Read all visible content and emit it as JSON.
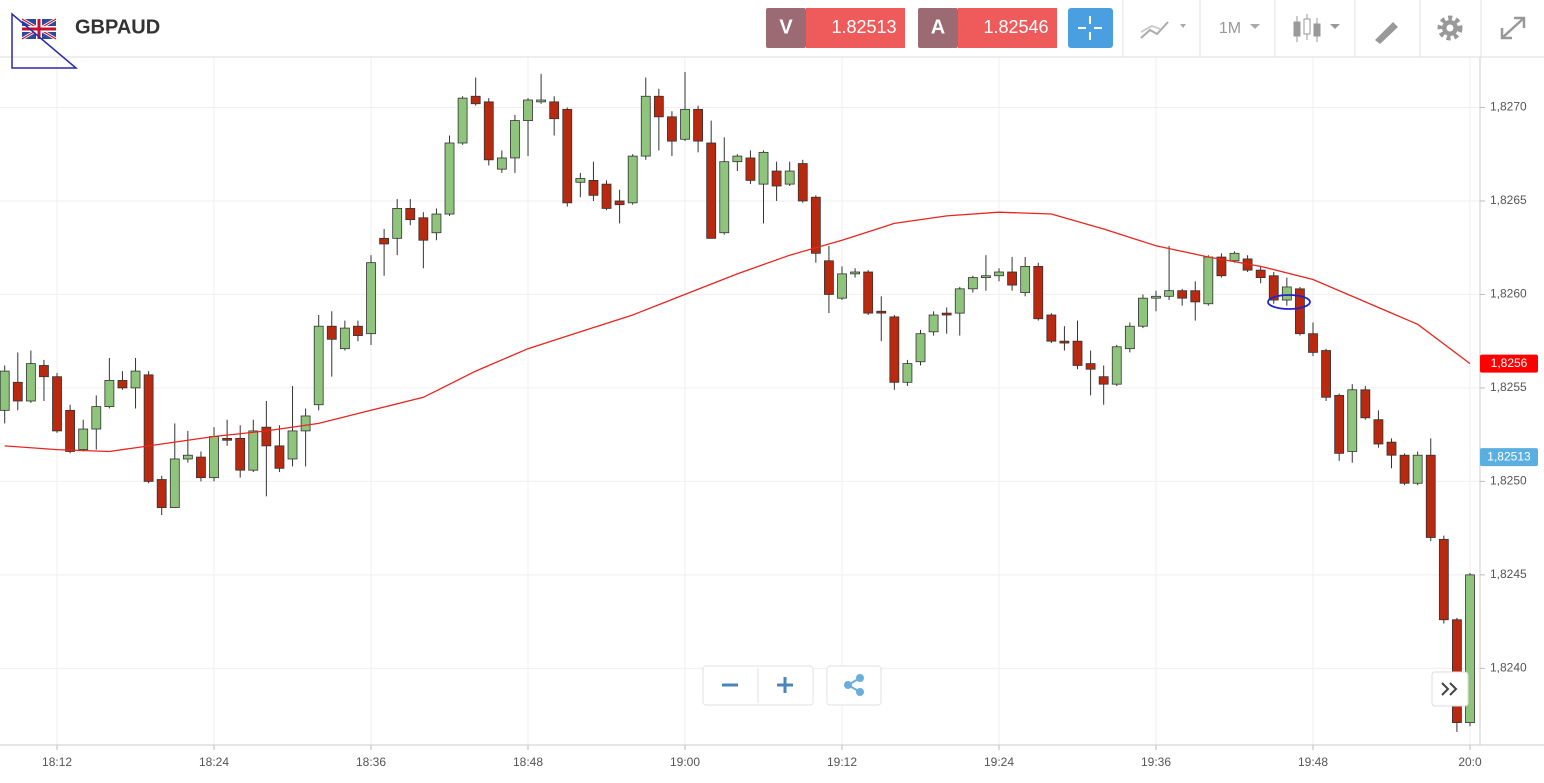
{
  "header": {
    "symbol": "GBPAUD",
    "bid_label": "V",
    "bid": 1.82513,
    "ask_label": "A",
    "ask": 1.82546,
    "timeframe": "1M"
  },
  "chart_data": {
    "type": "candlestick",
    "x": [
      "18:08",
      "18:09",
      "18:10",
      "18:11",
      "18:12",
      "18:13",
      "18:14",
      "18:15",
      "18:16",
      "18:17",
      "18:18",
      "18:19",
      "18:20",
      "18:21",
      "18:22",
      "18:23",
      "18:24",
      "18:25",
      "18:26",
      "18:27",
      "18:28",
      "18:29",
      "18:30",
      "18:31",
      "18:32",
      "18:33",
      "18:34",
      "18:35",
      "18:36",
      "18:37",
      "18:38",
      "18:39",
      "18:40",
      "18:41",
      "18:42",
      "18:43",
      "18:44",
      "18:45",
      "18:46",
      "18:47",
      "18:48",
      "18:49",
      "18:50",
      "18:51",
      "18:52",
      "18:53",
      "18:54",
      "18:55",
      "18:56",
      "18:57",
      "18:58",
      "18:59",
      "19:00",
      "19:01",
      "19:02",
      "19:03",
      "19:04",
      "19:05",
      "19:06",
      "19:07",
      "19:08",
      "19:09",
      "19:10",
      "19:11",
      "19:12",
      "19:13",
      "19:14",
      "19:15",
      "19:16",
      "19:17",
      "19:18",
      "19:19",
      "19:20",
      "19:21",
      "19:22",
      "19:23",
      "19:24",
      "19:25",
      "19:26",
      "19:27",
      "19:28",
      "19:29",
      "19:30",
      "19:31",
      "19:32",
      "19:33",
      "19:34",
      "19:35",
      "19:36",
      "19:37",
      "19:38",
      "19:39",
      "19:40",
      "19:41",
      "19:42",
      "19:43",
      "19:44",
      "19:45",
      "19:46",
      "19:47",
      "19:48",
      "19:49",
      "19:50",
      "19:51",
      "19:52",
      "19:53",
      "19:54",
      "19:55",
      "19:56",
      "19:57",
      "19:58",
      "19:59",
      "20:00"
    ],
    "open": [
      1.82538,
      1.82553,
      1.82543,
      1.82562,
      1.82556,
      1.82538,
      1.82517,
      1.82528,
      1.8254,
      1.82554,
      1.8255,
      1.82557,
      1.82501,
      1.82486,
      1.82512,
      1.82513,
      1.82502,
      1.82523,
      1.82523,
      1.82506,
      1.82529,
      1.82519,
      1.82512,
      1.82527,
      1.82541,
      1.82583,
      1.82571,
      1.82583,
      1.82579,
      1.8263,
      1.8263,
      1.82646,
      1.82641,
      1.82633,
      1.82643,
      1.82681,
      1.82706,
      1.82703,
      1.82667,
      1.82673,
      1.82693,
      1.82703,
      1.82703,
      1.82699,
      1.8266,
      1.82661,
      1.82659,
      1.8265,
      1.82649,
      1.82674,
      1.82706,
      1.82695,
      1.82683,
      1.82699,
      1.82681,
      1.82633,
      1.82671,
      1.82673,
      1.82659,
      1.82666,
      1.82659,
      1.8267,
      1.82652,
      1.82618,
      1.82598,
      1.82611,
      1.82612,
      1.82591,
      1.82588,
      1.82553,
      1.82564,
      1.8258,
      1.8259,
      1.8259,
      1.82603,
      1.82609,
      1.8261,
      1.82612,
      1.82601,
      1.82615,
      1.82589,
      1.82575,
      1.82575,
      1.82563,
      1.82556,
      1.82552,
      1.82571,
      1.82583,
      1.82598,
      1.82599,
      1.82602,
      1.82602,
      1.82595,
      1.8262,
      1.82618,
      1.82619,
      1.82613,
      1.8261,
      1.82597,
      1.82603,
      1.82579,
      1.8257,
      1.82546,
      1.82516,
      1.82549,
      1.82533,
      1.82521,
      1.82514,
      1.82499,
      1.82514,
      1.82469,
      1.82426,
      1.82371
    ],
    "high": [
      1.82562,
      1.82569,
      1.8257,
      1.82565,
      1.82558,
      1.82541,
      1.82533,
      1.82546,
      1.82566,
      1.82559,
      1.82566,
      1.82559,
      1.82503,
      1.82531,
      1.82527,
      1.82516,
      1.82529,
      1.82533,
      1.8253,
      1.82533,
      1.82543,
      1.8253,
      1.82551,
      1.82539,
      1.82589,
      1.82591,
      1.82586,
      1.82586,
      1.82621,
      1.82635,
      1.82651,
      1.82651,
      1.82644,
      1.82646,
      1.82685,
      1.82706,
      1.82716,
      1.82705,
      1.82677,
      1.82696,
      1.82705,
      1.82718,
      1.82706,
      1.827,
      1.82665,
      1.82671,
      1.82661,
      1.82656,
      1.82675,
      1.82716,
      1.8271,
      1.82698,
      1.82719,
      1.82701,
      1.82693,
      1.82684,
      1.82675,
      1.82677,
      1.82677,
      1.82671,
      1.82671,
      1.82672,
      1.82653,
      1.82626,
      1.82615,
      1.82614,
      1.82613,
      1.82599,
      1.82589,
      1.82565,
      1.82581,
      1.82591,
      1.82593,
      1.82604,
      1.8261,
      1.82621,
      1.82614,
      1.8262,
      1.8262,
      1.82617,
      1.8259,
      1.82583,
      1.82586,
      1.8257,
      1.82562,
      1.82573,
      1.82585,
      1.826,
      1.82602,
      1.82626,
      1.82603,
      1.82607,
      1.82621,
      1.82622,
      1.82623,
      1.82621,
      1.82615,
      1.82612,
      1.82609,
      1.82604,
      1.82585,
      1.82571,
      1.82547,
      1.82552,
      1.82551,
      1.82538,
      1.82523,
      1.82515,
      1.82516,
      1.82523,
      1.82471,
      1.82427,
      1.82451
    ],
    "low": [
      1.82531,
      1.82538,
      1.82542,
      1.82543,
      1.82526,
      1.82515,
      1.82516,
      1.82517,
      1.82539,
      1.82549,
      1.82539,
      1.82499,
      1.82482,
      1.82486,
      1.8251,
      1.825,
      1.825,
      1.82519,
      1.82502,
      1.82505,
      1.82492,
      1.82505,
      1.82508,
      1.82508,
      1.82538,
      1.82556,
      1.8257,
      1.82575,
      1.82573,
      1.8261,
      1.82621,
      1.82637,
      1.82614,
      1.82629,
      1.82642,
      1.8268,
      1.82701,
      1.82669,
      1.82665,
      1.82665,
      1.82674,
      1.82702,
      1.82685,
      1.82647,
      1.82652,
      1.8265,
      1.82645,
      1.82638,
      1.82648,
      1.82672,
      1.82677,
      1.82674,
      1.82682,
      1.82676,
      1.8263,
      1.82632,
      1.82666,
      1.82659,
      1.82638,
      1.8265,
      1.82658,
      1.82649,
      1.82617,
      1.8259,
      1.82597,
      1.82609,
      1.82589,
      1.82575,
      1.82549,
      1.82551,
      1.82562,
      1.82578,
      1.82579,
      1.82578,
      1.82601,
      1.82602,
      1.82607,
      1.82602,
      1.82599,
      1.82586,
      1.82574,
      1.8257,
      1.8256,
      1.82546,
      1.82541,
      1.82551,
      1.82569,
      1.82582,
      1.82591,
      1.82597,
      1.82594,
      1.82586,
      1.82594,
      1.82609,
      1.82617,
      1.82612,
      1.82606,
      1.82595,
      1.82594,
      1.82578,
      1.82567,
      1.82543,
      1.82511,
      1.8251,
      1.82533,
      1.82518,
      1.82507,
      1.82498,
      1.82498,
      1.82468,
      1.82424,
      1.82366,
      1.82369
    ],
    "close": [
      1.82559,
      1.82543,
      1.82563,
      1.82556,
      1.82527,
      1.82516,
      1.82528,
      1.8254,
      1.82554,
      1.8255,
      1.82559,
      1.825,
      1.82486,
      1.82512,
      1.82514,
      1.82502,
      1.82524,
      1.82522,
      1.82506,
      1.82527,
      1.82519,
      1.82507,
      1.82527,
      1.82535,
      1.82583,
      1.82576,
      1.82582,
      1.82578,
      1.82617,
      1.82627,
      1.82646,
      1.8264,
      1.82629,
      1.82643,
      1.82681,
      1.82705,
      1.82702,
      1.82672,
      1.82673,
      1.82693,
      1.82704,
      1.82704,
      1.82694,
      1.82649,
      1.82662,
      1.82653,
      1.82646,
      1.82648,
      1.82674,
      1.82706,
      1.82695,
      1.82682,
      1.82699,
      1.82682,
      1.8263,
      1.82671,
      1.82674,
      1.82661,
      1.82676,
      1.82658,
      1.82666,
      1.8265,
      1.82622,
      1.826,
      1.82611,
      1.82612,
      1.8259,
      1.8259,
      1.82553,
      1.82563,
      1.82579,
      1.82589,
      1.82589,
      1.82603,
      1.82609,
      1.8261,
      1.82612,
      1.82605,
      1.82615,
      1.82587,
      1.82575,
      1.82574,
      1.82562,
      1.8256,
      1.82552,
      1.82572,
      1.82583,
      1.82598,
      1.82599,
      1.82602,
      1.82598,
      1.82596,
      1.8262,
      1.8261,
      1.82622,
      1.82613,
      1.82609,
      1.82597,
      1.82604,
      1.82579,
      1.82569,
      1.82545,
      1.82515,
      1.82549,
      1.82534,
      1.8252,
      1.82514,
      1.82499,
      1.82514,
      1.8247,
      1.82426,
      1.82371,
      1.8245
    ],
    "up_color": "#8fc47d",
    "down_color": "#b8290f",
    "ylim": [
      1.82359,
      1.82727
    ],
    "yticks": [
      {
        "value": 1.824,
        "label": "1,8240"
      },
      {
        "value": 1.8245,
        "label": "1,8245"
      },
      {
        "value": 1.825,
        "label": "1,8250"
      },
      {
        "value": 1.8255,
        "label": "1,8255"
      },
      {
        "value": 1.826,
        "label": "1,8260"
      },
      {
        "value": 1.8265,
        "label": "1,8265"
      },
      {
        "value": 1.827,
        "label": "1,8270"
      }
    ],
    "xticks": [
      "18:12",
      "18:24",
      "18:36",
      "18:48",
      "19:00",
      "19:12",
      "19:24",
      "19:36",
      "19:48",
      "20:0"
    ],
    "grid": true,
    "moving_average": {
      "color": "#e8261f",
      "x": [
        "18:08",
        "18:12",
        "18:16",
        "18:20",
        "18:24",
        "18:28",
        "18:32",
        "18:36",
        "18:40",
        "18:44",
        "18:48",
        "18:52",
        "18:56",
        "19:00",
        "19:04",
        "19:08",
        "19:12",
        "19:16",
        "19:20",
        "19:24",
        "19:28",
        "19:32",
        "19:36",
        "19:40",
        "19:44",
        "19:48",
        "19:52",
        "19:56",
        "20:00"
      ],
      "values": [
        1.82519,
        1.82517,
        1.82516,
        1.8252,
        1.82524,
        1.82527,
        1.82531,
        1.82538,
        1.82545,
        1.82559,
        1.82571,
        1.8258,
        1.82589,
        1.826,
        1.82611,
        1.82621,
        1.82629,
        1.82638,
        1.82642,
        1.82644,
        1.82643,
        1.82635,
        1.82626,
        1.8262,
        1.82615,
        1.82608,
        1.82596,
        1.82584,
        1.82563
      ],
      "last_label": {
        "value": 1.82563,
        "label": "1,8256",
        "color": "#ff0000"
      }
    },
    "price_label": {
      "value": 1.82513,
      "label": "1,82513",
      "color": "#5aaee0"
    }
  }
}
